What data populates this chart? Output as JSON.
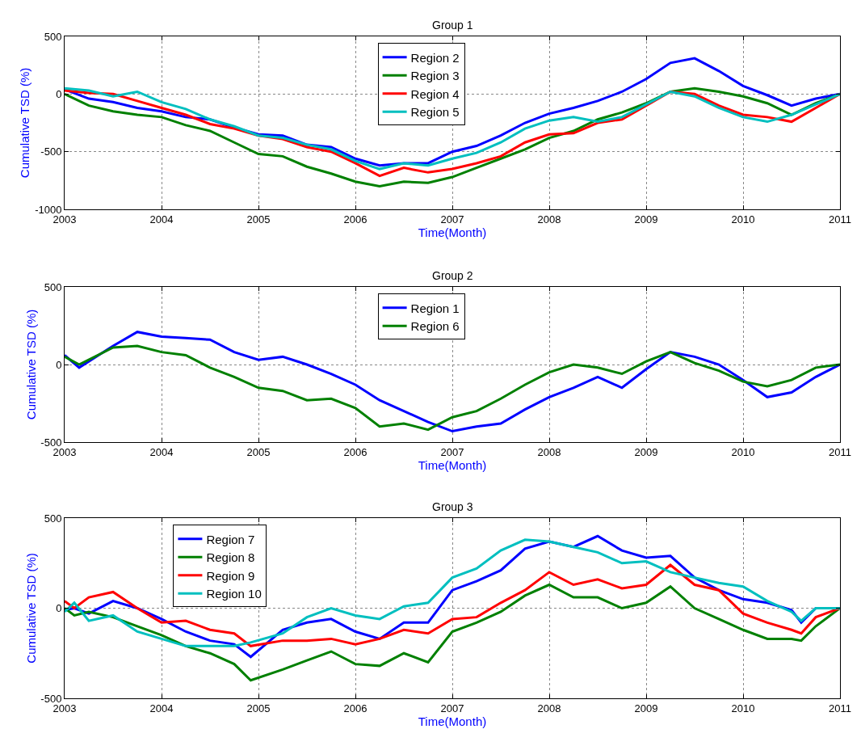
{
  "chart_data": [
    {
      "type": "line",
      "title": "Group 1",
      "xlabel": "Time(Month)",
      "ylabel": "Cumulative TSD (%)",
      "xlim": [
        2003,
        2011
      ],
      "xticks": [
        2003,
        2004,
        2005,
        2006,
        2007,
        2008,
        2009,
        2010,
        2011
      ],
      "ylim": [
        -1000,
        500
      ],
      "yticks": [
        -1000,
        -500,
        0,
        500
      ],
      "grid": true,
      "legend": "top",
      "line_style": "solid",
      "marker": "none",
      "x": [
        2003,
        2003.25,
        2003.5,
        2003.75,
        2004,
        2004.25,
        2004.5,
        2004.75,
        2005,
        2005.25,
        2005.5,
        2005.75,
        2006,
        2006.25,
        2006.5,
        2006.75,
        2007,
        2007.25,
        2007.5,
        2007.75,
        2008,
        2008.25,
        2008.5,
        2008.75,
        2009,
        2009.25,
        2009.5,
        2009.75,
        2010,
        2010.25,
        2010.5,
        2010.75,
        2011
      ],
      "series": [
        {
          "name": "Region 2",
          "color": "#0000ff",
          "values": [
            40,
            -40,
            -70,
            -120,
            -150,
            -200,
            -220,
            -290,
            -350,
            -360,
            -440,
            -460,
            -560,
            -620,
            -600,
            -600,
            -500,
            -450,
            -360,
            -250,
            -170,
            -120,
            -60,
            20,
            130,
            270,
            310,
            200,
            70,
            -10,
            -100,
            -40,
            0
          ]
        },
        {
          "name": "Region 3",
          "color": "#008000",
          "values": [
            0,
            -100,
            -150,
            -180,
            -200,
            -270,
            -320,
            -420,
            -520,
            -540,
            -630,
            -690,
            -760,
            -800,
            -760,
            -770,
            -720,
            -640,
            -560,
            -480,
            -380,
            -320,
            -220,
            -160,
            -80,
            20,
            50,
            20,
            -20,
            -80,
            -180,
            -80,
            0
          ]
        },
        {
          "name": "Region 4",
          "color": "#ff0000",
          "values": [
            30,
            10,
            0,
            -60,
            -120,
            -180,
            -260,
            -300,
            -360,
            -390,
            -460,
            -500,
            -600,
            -710,
            -640,
            -680,
            -650,
            -600,
            -540,
            -420,
            -350,
            -340,
            -250,
            -220,
            -100,
            20,
            0,
            -100,
            -180,
            -200,
            -240,
            -120,
            0
          ]
        },
        {
          "name": "Region 5",
          "color": "#00bfbf",
          "values": [
            50,
            30,
            -20,
            20,
            -70,
            -130,
            -220,
            -280,
            -360,
            -380,
            -440,
            -480,
            -580,
            -650,
            -600,
            -620,
            -560,
            -510,
            -420,
            -300,
            -230,
            -200,
            -240,
            -200,
            -90,
            20,
            -20,
            -120,
            -200,
            -240,
            -180,
            -90,
            0
          ]
        }
      ]
    },
    {
      "type": "line",
      "title": "Group 2",
      "xlabel": "Time(Month)",
      "ylabel": "Cumulative TSD (%)",
      "xlim": [
        2003,
        2011
      ],
      "xticks": [
        2003,
        2004,
        2005,
        2006,
        2007,
        2008,
        2009,
        2010,
        2011
      ],
      "ylim": [
        -500,
        500
      ],
      "yticks": [
        -500,
        0,
        500
      ],
      "grid": true,
      "legend": "top",
      "line_style": "solid",
      "marker": "none",
      "x": [
        2003,
        2003.15,
        2003.5,
        2003.75,
        2004,
        2004.25,
        2004.5,
        2004.75,
        2005,
        2005.25,
        2005.5,
        2005.75,
        2006,
        2006.25,
        2006.5,
        2006.75,
        2007,
        2007.25,
        2007.5,
        2007.75,
        2008,
        2008.25,
        2008.5,
        2008.75,
        2009,
        2009.25,
        2009.5,
        2009.75,
        2010,
        2010.25,
        2010.5,
        2010.75,
        2011
      ],
      "series": [
        {
          "name": "Region 1",
          "color": "#0000ff",
          "values": [
            60,
            -20,
            120,
            210,
            180,
            170,
            160,
            80,
            30,
            50,
            0,
            -60,
            -130,
            -230,
            -300,
            -370,
            -430,
            -400,
            -380,
            -290,
            -210,
            -150,
            -80,
            -150,
            -30,
            80,
            50,
            0,
            -100,
            -210,
            -180,
            -80,
            0
          ]
        },
        {
          "name": "Region 6",
          "color": "#008000",
          "values": [
            50,
            0,
            110,
            120,
            80,
            60,
            -20,
            -80,
            -150,
            -170,
            -230,
            -220,
            -280,
            -400,
            -380,
            -420,
            -340,
            -300,
            -220,
            -130,
            -50,
            0,
            -20,
            -60,
            20,
            80,
            10,
            -40,
            -110,
            -140,
            -100,
            -20,
            0
          ]
        }
      ]
    },
    {
      "type": "line",
      "title": "Group 3",
      "xlabel": "Time(Month)",
      "ylabel": "Cumulative TSD (%)",
      "xlim": [
        2003,
        2011
      ],
      "xticks": [
        2003,
        2004,
        2005,
        2006,
        2007,
        2008,
        2009,
        2010,
        2011
      ],
      "ylim": [
        -500,
        500
      ],
      "yticks": [
        -500,
        0,
        500
      ],
      "grid": true,
      "legend": "top left",
      "line_style": "solid",
      "marker": "none",
      "x": [
        2003,
        2003.1,
        2003.25,
        2003.5,
        2003.75,
        2004,
        2004.25,
        2004.5,
        2004.75,
        2004.92,
        2005.25,
        2005.5,
        2005.75,
        2006,
        2006.25,
        2006.5,
        2006.75,
        2007,
        2007.25,
        2007.5,
        2007.75,
        2008,
        2008.25,
        2008.5,
        2008.75,
        2009,
        2009.25,
        2009.5,
        2009.75,
        2010,
        2010.25,
        2010.5,
        2010.6,
        2010.75,
        2011
      ],
      "series": [
        {
          "name": "Region 7",
          "color": "#0000ff",
          "values": [
            -10,
            0,
            -30,
            40,
            0,
            -60,
            -130,
            -180,
            -200,
            -270,
            -120,
            -80,
            -60,
            -130,
            -170,
            -80,
            -80,
            100,
            150,
            210,
            330,
            370,
            340,
            400,
            320,
            280,
            290,
            170,
            100,
            50,
            30,
            -10,
            -80,
            0,
            0
          ]
        },
        {
          "name": "Region 8",
          "color": "#008000",
          "values": [
            0,
            -40,
            -20,
            -50,
            -100,
            -150,
            -210,
            -250,
            -310,
            -400,
            -340,
            -290,
            -240,
            -310,
            -320,
            -250,
            -300,
            -130,
            -80,
            -20,
            70,
            130,
            60,
            60,
            0,
            30,
            120,
            0,
            -60,
            -120,
            -170,
            -170,
            -180,
            -100,
            0
          ]
        },
        {
          "name": "Region 9",
          "color": "#ff0000",
          "values": [
            40,
            0,
            60,
            90,
            0,
            -80,
            -70,
            -120,
            -140,
            -210,
            -180,
            -180,
            -170,
            -200,
            -170,
            -120,
            -140,
            -60,
            -50,
            30,
            100,
            200,
            130,
            160,
            110,
            130,
            240,
            130,
            100,
            -30,
            -80,
            -120,
            -140,
            -50,
            0
          ]
        },
        {
          "name": "Region 10",
          "color": "#00bfbf",
          "values": [
            -20,
            30,
            -70,
            -40,
            -130,
            -170,
            -210,
            -210,
            -210,
            -190,
            -140,
            -50,
            0,
            -40,
            -60,
            10,
            30,
            170,
            220,
            320,
            380,
            370,
            340,
            310,
            250,
            260,
            200,
            170,
            140,
            120,
            40,
            -20,
            -70,
            0,
            0
          ]
        }
      ]
    }
  ]
}
